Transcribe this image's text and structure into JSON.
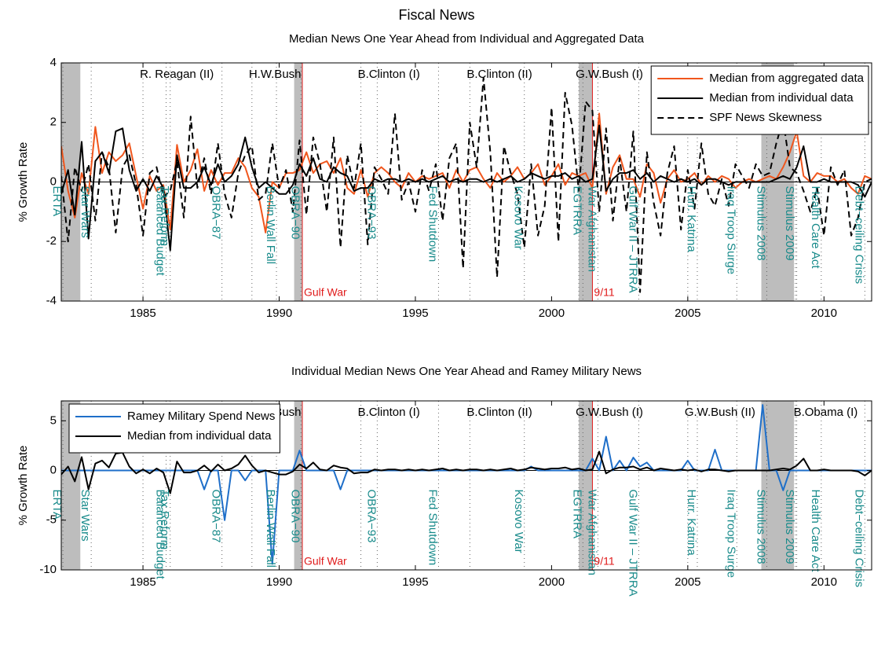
{
  "title": "Fiscal News",
  "annotations": {
    "presidents": [
      {
        "label": "R. Reagan (II)",
        "x": 1985
      },
      {
        "label": "H.W.Bush",
        "x": 1989
      },
      {
        "label": "B.Clinton (I)",
        "x": 1993
      },
      {
        "label": "B.Clinton (II)",
        "x": 1997
      },
      {
        "label": "G.W.Bush (I)",
        "x": 2001
      },
      {
        "label": "G.W.Bush (II)",
        "x": 2005
      },
      {
        "label": "B.Obama (I)",
        "x": 2009
      }
    ],
    "events": [
      {
        "label": "ERTA",
        "x": 1982.06
      },
      {
        "label": "Star Wars",
        "x": 1983.1
      },
      {
        "label": "Balanced Budget",
        "x": 1985.85
      },
      {
        "label": "Tax Reform",
        "x": 1986.0
      },
      {
        "label": "OBRA−87",
        "x": 1987.9
      },
      {
        "label": "Berlin Wall Fall",
        "x": 1989.9
      },
      {
        "label": "OBRA−90",
        "x": 1990.8
      },
      {
        "label": "OBRA−93",
        "x": 1993.6
      },
      {
        "label": "Fed Shutdown",
        "x": 1995.85
      },
      {
        "label": "Kosovo War",
        "x": 1999.0
      },
      {
        "label": "EGTRRA",
        "x": 2001.15
      },
      {
        "label": "War Afghanistan",
        "x": 2001.7
      },
      {
        "label": "Gulf War II – JTRRA",
        "x": 2003.2
      },
      {
        "label": "Hurr. Katrina",
        "x": 2005.35
      },
      {
        "label": "Iraq Troop Surge",
        "x": 2006.8
      },
      {
        "label": "Stimulus 2008",
        "x": 2007.9
      },
      {
        "label": "Stimulus 2009",
        "x": 2008.95
      },
      {
        "label": "Health Care Act",
        "x": 2009.9
      },
      {
        "label": "Debt−ceiling Crisis",
        "x": 2011.5
      }
    ],
    "recessions": [
      [
        1981.5,
        1982.7
      ],
      [
        1990.55,
        1990.85
      ],
      [
        2001.0,
        2001.5
      ],
      [
        2007.7,
        2008.9
      ]
    ],
    "markers": [
      {
        "label": "Gulf War",
        "x": 1990.85
      },
      {
        "label": "9/11",
        "x": 2001.5
      }
    ]
  },
  "chart_data": [
    {
      "type": "line",
      "title": "Median News One Year Ahead from Individual and Aggregated Data",
      "ylabel": "% Growth Rate",
      "legend": "upper right",
      "zero_line": true,
      "xlim": [
        1982,
        2011.75
      ],
      "xticks": [
        1985,
        1990,
        1995,
        2000,
        2005,
        2010
      ],
      "ylim": [
        -4,
        4
      ],
      "yticks": [
        -4,
        -2,
        0,
        2,
        4
      ],
      "x": [
        1982,
        1982.25,
        1982.5,
        1982.75,
        1983,
        1983.25,
        1983.5,
        1983.75,
        1984,
        1984.25,
        1984.5,
        1984.75,
        1985,
        1985.25,
        1985.5,
        1985.75,
        1986,
        1986.25,
        1986.5,
        1986.75,
        1987,
        1987.25,
        1987.5,
        1987.75,
        1988,
        1988.25,
        1988.5,
        1988.75,
        1989,
        1989.25,
        1989.5,
        1989.75,
        1990,
        1990.25,
        1990.5,
        1990.75,
        1991,
        1991.25,
        1991.5,
        1991.75,
        1992,
        1992.25,
        1992.5,
        1992.75,
        1993,
        1993.25,
        1993.5,
        1993.75,
        1994,
        1994.25,
        1994.5,
        1994.75,
        1995,
        1995.25,
        1995.5,
        1995.75,
        1996,
        1996.25,
        1996.5,
        1996.75,
        1997,
        1997.25,
        1997.5,
        1997.75,
        1998,
        1998.25,
        1998.5,
        1998.75,
        1999,
        1999.25,
        1999.5,
        1999.75,
        2000,
        2000.25,
        2000.5,
        2000.75,
        2001,
        2001.25,
        2001.5,
        2001.75,
        2002,
        2002.25,
        2002.5,
        2002.75,
        2003,
        2003.25,
        2003.5,
        2003.75,
        2004,
        2004.25,
        2004.5,
        2004.75,
        2005,
        2005.25,
        2005.5,
        2005.75,
        2006,
        2006.25,
        2006.5,
        2006.75,
        2007,
        2007.25,
        2007.5,
        2007.75,
        2008,
        2008.25,
        2008.5,
        2008.75,
        2009,
        2009.25,
        2009.5,
        2009.75,
        2010,
        2010.25,
        2010.5,
        2010.75,
        2011,
        2011.25,
        2011.5,
        2011.75
      ],
      "series": [
        {
          "name": "Median from aggregated data",
          "color": "#f0561d",
          "linestyle": "solid",
          "values": [
            1.2,
            -0.3,
            -1.2,
            0.3,
            -0.4,
            1.85,
            0.3,
            1.0,
            0.7,
            0.9,
            1.3,
            0.2,
            -0.9,
            0.2,
            -0.3,
            -0.1,
            -1.6,
            1.25,
            0.0,
            0.4,
            1.1,
            -0.3,
            0.4,
            -0.1,
            0.3,
            0.3,
            0.8,
            0.5,
            -0.2,
            -0.5,
            -1.7,
            0.0,
            -0.2,
            0.3,
            0.3,
            0.4,
            1.0,
            0.3,
            0.6,
            0.7,
            0.3,
            0.8,
            -0.2,
            -0.4,
            0.4,
            -0.5,
            0.3,
            0.5,
            0.3,
            0.0,
            -0.2,
            0.3,
            0.0,
            0.2,
            0.1,
            0.2,
            0.3,
            -0.2,
            0.4,
            0.0,
            0.4,
            0.5,
            0.1,
            -0.2,
            0.3,
            0.0,
            0.2,
            0.5,
            0.1,
            0.3,
            0.6,
            -0.1,
            0.2,
            0.6,
            -0.1,
            0.3,
            0.2,
            0.3,
            -0.2,
            2.3,
            -0.4,
            0.5,
            0.9,
            0.1,
            0.1,
            -0.5,
            0.6,
            0.3,
            -0.7,
            0.1,
            0.4,
            0.0,
            0.1,
            0.3,
            -0.1,
            0.2,
            0.0,
            0.2,
            0.1,
            -0.2,
            0.0,
            0.1,
            0.0,
            0.1,
            0.2,
            0.1,
            0.5,
            1.0,
            1.7,
            0.2,
            0.0,
            0.3,
            0.2,
            0.2,
            0.0,
            0.1,
            -0.2,
            -0.4,
            0.2,
            0.1
          ]
        },
        {
          "name": "Median from individual data",
          "color": "#000000",
          "linestyle": "solid",
          "values": [
            -0.4,
            0.4,
            -1.1,
            1.35,
            -1.9,
            0.7,
            1.0,
            0.3,
            1.7,
            1.8,
            0.4,
            -0.3,
            0.1,
            -0.3,
            0.2,
            -0.2,
            -2.3,
            0.9,
            -0.2,
            -0.2,
            0.0,
            0.5,
            -0.1,
            0.6,
            0.0,
            0.2,
            0.6,
            1.5,
            0.5,
            -0.2,
            0.0,
            -0.2,
            -0.4,
            -0.4,
            -0.1,
            0.6,
            0.2,
            0.8,
            0.1,
            0.0,
            0.5,
            0.3,
            0.2,
            -0.3,
            -0.2,
            -0.2,
            0.1,
            0.0,
            0.1,
            0.1,
            0.0,
            0.1,
            0.0,
            0.1,
            0.0,
            0.1,
            0.2,
            0.0,
            0.1,
            0.0,
            0.1,
            0.1,
            0.0,
            0.1,
            0.0,
            0.1,
            0.2,
            0.0,
            0.1,
            0.3,
            0.2,
            0.1,
            0.2,
            0.2,
            0.3,
            0.1,
            0.2,
            0.0,
            0.1,
            1.9,
            -0.3,
            0.1,
            0.3,
            0.3,
            0.4,
            0.1,
            0.3,
            0.0,
            0.2,
            0.1,
            0.0,
            0.1,
            0.0,
            0.1,
            -0.1,
            0.1,
            0.1,
            0.0,
            -0.1,
            0.0,
            0.0,
            0.0,
            0.0,
            0.0,
            0.0,
            0.1,
            0.2,
            0.1,
            0.5,
            1.2,
            0.0,
            0.0,
            0.1,
            0.0,
            0.0,
            0.0,
            0.0,
            -0.1,
            -0.5,
            0.0
          ]
        },
        {
          "name": "SPF News Skewness",
          "color": "#000000",
          "linestyle": "dashed",
          "values": [
            0.2,
            -2.0,
            0.5,
            -0.3,
            0.6,
            -1.3,
            1.0,
            0.5,
            -1.7,
            0.5,
            0.9,
            -0.1,
            -1.8,
            0.3,
            0.5,
            -0.5,
            -0.3,
            0.7,
            -1.2,
            2.2,
            -0.2,
            0.8,
            -0.4,
            1.3,
            -0.4,
            -1.2,
            0.3,
            0.9,
            1.2,
            -0.6,
            -0.4,
            1.3,
            -0.2,
            0.4,
            -1.0,
            1.4,
            -1.1,
            1.5,
            0.6,
            -1.0,
            1.5,
            -2.2,
            0.9,
            -0.2,
            1.3,
            -2.1,
            0.5,
            0.1,
            -0.4,
            2.3,
            -0.6,
            0.0,
            -1.0,
            0.4,
            -0.3,
            0.6,
            -1.3,
            0.8,
            1.3,
            -2.9,
            2.0,
            0.5,
            3.5,
            1.0,
            -3.2,
            1.2,
            0.3,
            -0.4,
            -2.2,
            0.6,
            -1.8,
            -0.8,
            2.5,
            -2.0,
            3.0,
            1.9,
            -0.3,
            2.7,
            2.4,
            -1.0,
            1.8,
            -1.3,
            0.8,
            -1.0,
            1.7,
            -3.7,
            1.0,
            -0.7,
            -1.8,
            0.3,
            1.2,
            -1.6,
            0.4,
            -0.9,
            1.3,
            -0.4,
            -0.8,
            0.1,
            -0.8,
            0.6,
            0.2,
            -0.2,
            0.6,
            0.2,
            0.3,
            1.3,
            2.1,
            0.5,
            0.3,
            -0.3,
            -1.0,
            -0.2,
            -1.8,
            0.5,
            -0.1,
            0.4,
            -1.8,
            -1.2,
            0.0,
            0.1
          ]
        }
      ]
    },
    {
      "type": "line",
      "title": "Individual Median News One Year Ahead and Ramey Military News",
      "ylabel": "% Growth Rate",
      "legend": "upper left",
      "zero_line": true,
      "xlim": [
        1982,
        2011.75
      ],
      "xticks": [
        1985,
        1990,
        1995,
        2000,
        2005,
        2010
      ],
      "ylim": [
        -10,
        7
      ],
      "yticks": [
        -10,
        -5,
        0,
        5
      ],
      "x": [
        1982,
        1982.25,
        1982.5,
        1982.75,
        1983,
        1983.25,
        1983.5,
        1983.75,
        1984,
        1984.25,
        1984.5,
        1984.75,
        1985,
        1985.25,
        1985.5,
        1985.75,
        1986,
        1986.25,
        1986.5,
        1986.75,
        1987,
        1987.25,
        1987.5,
        1987.75,
        1988,
        1988.25,
        1988.5,
        1988.75,
        1989,
        1989.25,
        1989.5,
        1989.75,
        1990,
        1990.25,
        1990.5,
        1990.75,
        1991,
        1991.25,
        1991.5,
        1991.75,
        1992,
        1992.25,
        1992.5,
        1992.75,
        1993,
        1993.25,
        1993.5,
        1993.75,
        1994,
        1994.25,
        1994.5,
        1994.75,
        1995,
        1995.25,
        1995.5,
        1995.75,
        1996,
        1996.25,
        1996.5,
        1996.75,
        1997,
        1997.25,
        1997.5,
        1997.75,
        1998,
        1998.25,
        1998.5,
        1998.75,
        1999,
        1999.25,
        1999.5,
        1999.75,
        2000,
        2000.25,
        2000.5,
        2000.75,
        2001,
        2001.25,
        2001.5,
        2001.75,
        2002,
        2002.25,
        2002.5,
        2002.75,
        2003,
        2003.25,
        2003.5,
        2003.75,
        2004,
        2004.25,
        2004.5,
        2004.75,
        2005,
        2005.25,
        2005.5,
        2005.75,
        2006,
        2006.25,
        2006.5,
        2006.75,
        2007,
        2007.25,
        2007.5,
        2007.75,
        2008,
        2008.25,
        2008.5,
        2008.75,
        2009,
        2009.25,
        2009.5,
        2009.75,
        2010,
        2010.25,
        2010.5,
        2010.75,
        2011,
        2011.25,
        2011.5,
        2011.75
      ],
      "series": [
        {
          "name": "Ramey Military Spend News",
          "color": "#1f6fc9",
          "linestyle": "solid",
          "values": [
            0,
            0,
            0,
            0,
            0,
            0,
            0,
            0,
            0,
            0,
            0,
            0,
            0,
            0,
            0,
            0,
            0,
            0,
            0,
            0,
            0,
            -1.9,
            0,
            0,
            -5.0,
            0,
            0,
            -1.0,
            0,
            0,
            0,
            -9.4,
            0,
            0,
            0,
            2.0,
            0,
            0,
            0,
            0,
            0,
            -1.9,
            0,
            0,
            0,
            0,
            0,
            0,
            0,
            0,
            0,
            0,
            0,
            0,
            0,
            0,
            0,
            0,
            0,
            0,
            0,
            0,
            0,
            0,
            0,
            0,
            0,
            0,
            0,
            0.4,
            0,
            0,
            0,
            0,
            0,
            0,
            0,
            0,
            1.2,
            0,
            3.4,
            0,
            1.0,
            0,
            1.3,
            0.4,
            0.8,
            0,
            0,
            0,
            0,
            0,
            1.0,
            0,
            0,
            0,
            2.1,
            0,
            0,
            0,
            0,
            0,
            0,
            6.6,
            0,
            0,
            -2.0,
            0,
            0,
            0,
            0,
            0,
            0,
            0,
            0,
            0,
            0,
            0,
            0,
            0
          ]
        },
        {
          "name": "Median from individual data",
          "color": "#000000",
          "linestyle": "solid",
          "values": [
            -0.4,
            0.4,
            -1.1,
            1.35,
            -1.9,
            0.7,
            1.0,
            0.3,
            1.7,
            1.8,
            0.4,
            -0.3,
            0.1,
            -0.3,
            0.2,
            -0.2,
            -2.3,
            0.9,
            -0.2,
            -0.2,
            0.0,
            0.5,
            -0.1,
            0.6,
            0.0,
            0.2,
            0.6,
            1.5,
            0.5,
            -0.2,
            0.0,
            -0.2,
            -0.4,
            -0.4,
            -0.1,
            0.6,
            0.2,
            0.8,
            0.1,
            0.0,
            0.5,
            0.3,
            0.2,
            -0.3,
            -0.2,
            -0.2,
            0.1,
            0.0,
            0.1,
            0.1,
            0.0,
            0.1,
            0.0,
            0.1,
            0.0,
            0.1,
            0.2,
            0.0,
            0.1,
            0.0,
            0.1,
            0.1,
            0.0,
            0.1,
            0.0,
            0.1,
            0.2,
            0.0,
            0.1,
            0.3,
            0.2,
            0.1,
            0.2,
            0.2,
            0.3,
            0.1,
            0.2,
            0.0,
            0.1,
            1.9,
            -0.3,
            0.1,
            0.3,
            0.3,
            0.4,
            0.1,
            0.3,
            0.0,
            0.2,
            0.1,
            0.0,
            0.1,
            0.0,
            0.1,
            -0.1,
            0.1,
            0.1,
            0.0,
            -0.1,
            0.0,
            0.0,
            0.0,
            0.0,
            0.0,
            0.0,
            0.1,
            0.2,
            0.1,
            0.5,
            1.2,
            0.0,
            0.0,
            0.1,
            0.0,
            0.0,
            0.0,
            0.0,
            -0.1,
            -0.5,
            0.0
          ]
        }
      ]
    }
  ]
}
